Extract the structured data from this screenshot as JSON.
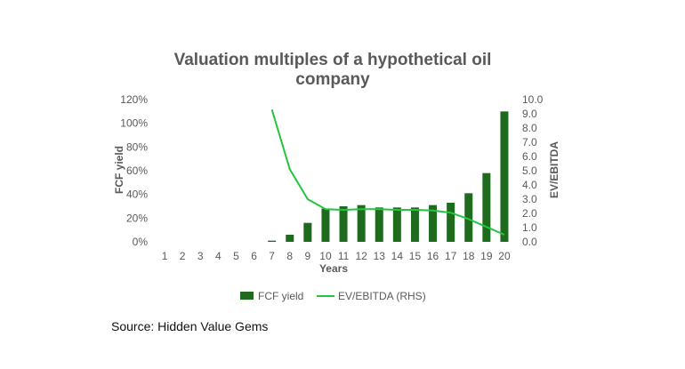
{
  "chart_data": {
    "type": "bar",
    "title_lines": [
      "Valuation multiples of a hypothetical oil",
      "company"
    ],
    "xlabel": "Years",
    "ylabel": "FCF yield",
    "y2label": "EV/EBITDA",
    "categories": [
      "1",
      "2",
      "3",
      "4",
      "5",
      "6",
      "7",
      "8",
      "9",
      "10",
      "11",
      "12",
      "13",
      "14",
      "15",
      "16",
      "17",
      "18",
      "19",
      "20"
    ],
    "ylim": [
      0,
      1.2
    ],
    "y_ticks": [
      0,
      0.2,
      0.4,
      0.6,
      0.8,
      1.0,
      1.2
    ],
    "y_tick_labels": [
      "0%",
      "20%",
      "40%",
      "60%",
      "80%",
      "100%",
      "120%"
    ],
    "y2lim": [
      0,
      10
    ],
    "y2_ticks": [
      0,
      1,
      2,
      3,
      4,
      5,
      6,
      7,
      8,
      9,
      10
    ],
    "y2_tick_labels": [
      "0.0",
      "1.0",
      "2.0",
      "3.0",
      "4.0",
      "5.0",
      "6.0",
      "7.0",
      "8.0",
      "9.0",
      "10.0"
    ],
    "series": [
      {
        "name": "FCF yield",
        "type": "bar",
        "axis": "left",
        "color": "#1e6b1e",
        "values": [
          0,
          0,
          0,
          0,
          0,
          0,
          0.01,
          0.06,
          0.16,
          0.28,
          0.3,
          0.31,
          0.29,
          0.29,
          0.29,
          0.31,
          0.33,
          0.41,
          0.58,
          1.1
        ]
      },
      {
        "name": "EV/EBITDA (RHS)",
        "type": "line",
        "axis": "right",
        "color": "#22c440",
        "values": [
          null,
          null,
          null,
          null,
          null,
          null,
          9.3,
          5.1,
          3.0,
          2.3,
          2.25,
          2.3,
          2.3,
          2.25,
          2.25,
          2.2,
          2.05,
          1.6,
          1.05,
          0.5
        ]
      }
    ],
    "grid": false,
    "legend_position": "bottom"
  },
  "source_text": "Source: Hidden Value Gems"
}
